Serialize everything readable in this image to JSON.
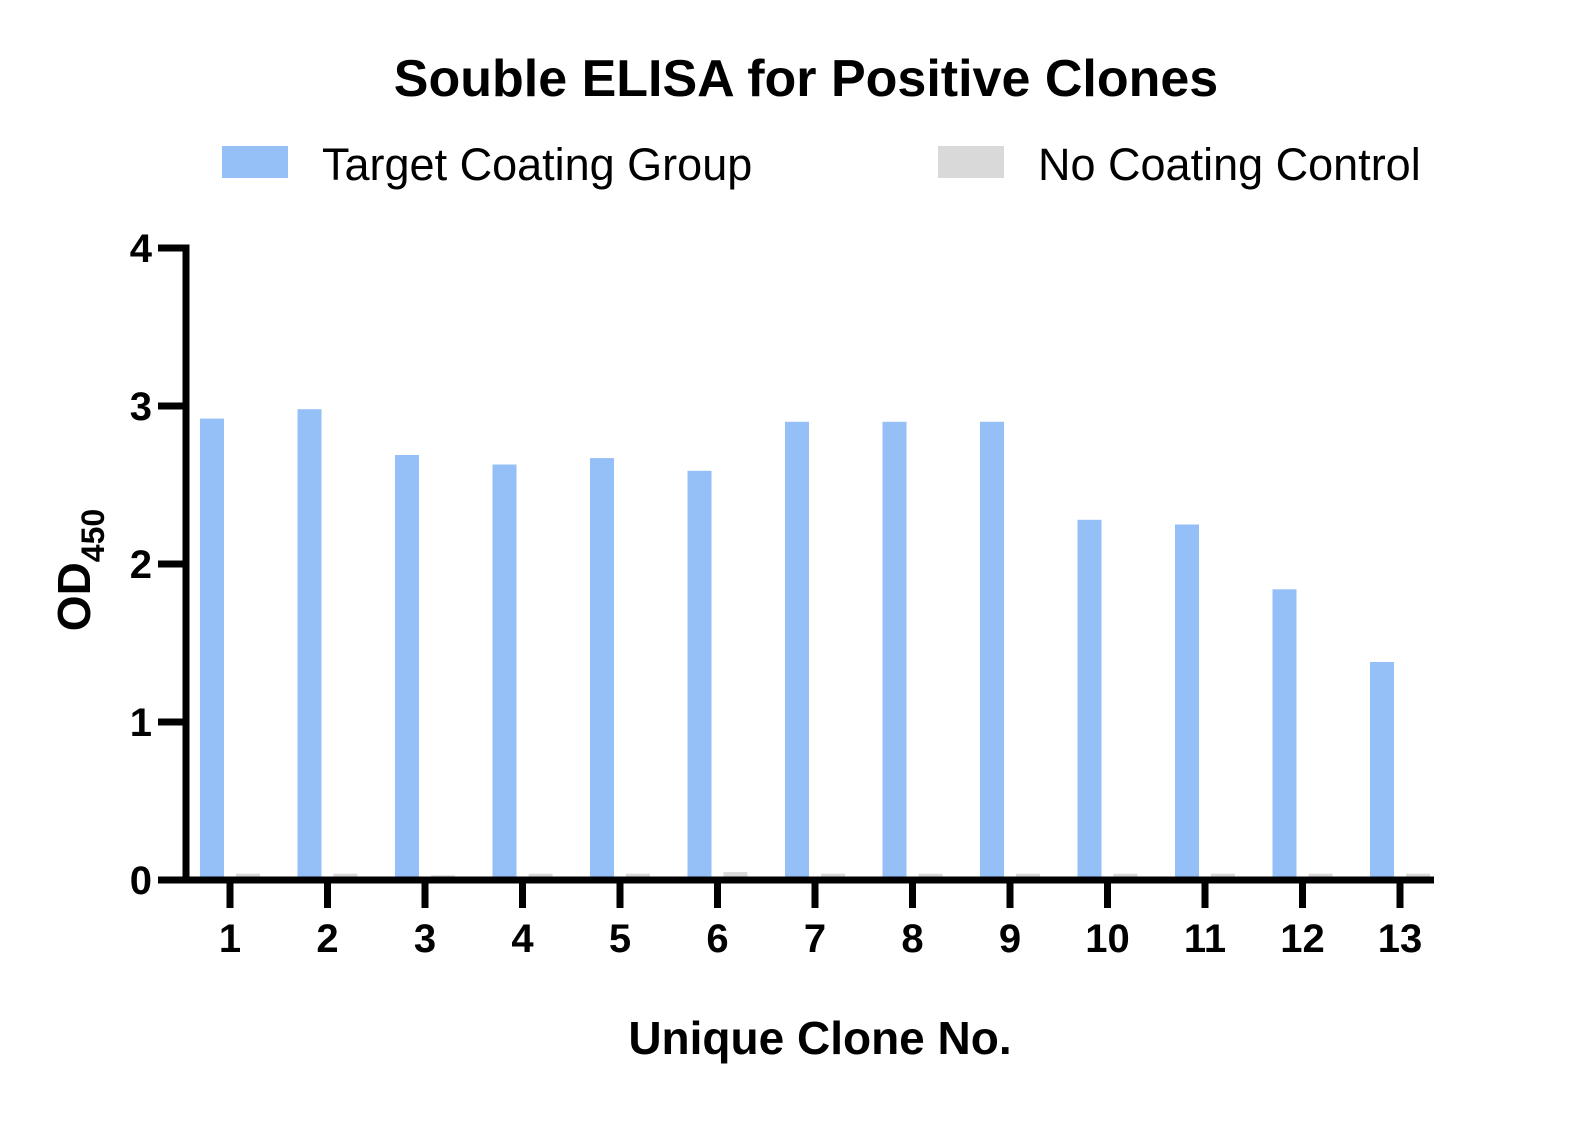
{
  "chart_data": {
    "type": "bar",
    "title": "Souble ELISA for Positive Clones",
    "xlabel": "Unique Clone No.",
    "ylabel": "OD",
    "ylabel_subscript": "450",
    "categories": [
      "1",
      "2",
      "3",
      "4",
      "5",
      "6",
      "7",
      "8",
      "9",
      "10",
      "11",
      "12",
      "13"
    ],
    "series": [
      {
        "name": "Target Coating Group",
        "color": "#94bff7",
        "values": [
          2.92,
          2.98,
          2.69,
          2.63,
          2.67,
          2.59,
          2.9,
          2.9,
          2.9,
          2.28,
          2.25,
          1.84,
          1.38
        ]
      },
      {
        "name": "No Coating Control",
        "color": "#d9d9d9",
        "values": [
          0.04,
          0.04,
          0.03,
          0.04,
          0.04,
          0.05,
          0.04,
          0.04,
          0.04,
          0.04,
          0.04,
          0.04,
          0.04
        ]
      }
    ],
    "ylim": [
      0,
      4
    ],
    "yticks": [
      "0",
      "1",
      "2",
      "3",
      "4"
    ],
    "grid": false,
    "legend_position": "top"
  }
}
